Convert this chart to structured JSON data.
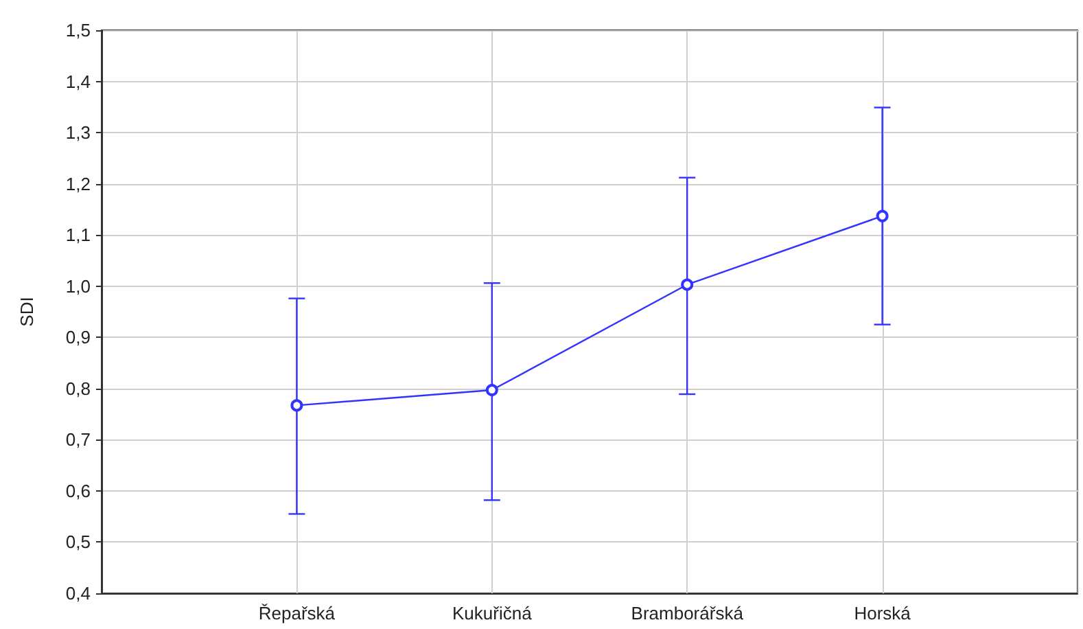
{
  "chart_data": {
    "type": "line",
    "ylabel": "SDI",
    "categories": [
      null,
      "Řepařská",
      "Kukuřičná",
      "Bramborářská",
      "Horská",
      null
    ],
    "series": [
      {
        "color": "#3333ff",
        "values": [
          null,
          0.767,
          0.797,
          1.003,
          1.137,
          null
        ],
        "errors": [
          null,
          [
            0.555,
            0.976
          ],
          [
            0.582,
            1.006
          ],
          [
            0.789,
            1.212
          ],
          [
            0.925,
            1.349
          ],
          null
        ]
      }
    ],
    "ylim": [
      0.4,
      1.5
    ],
    "yticks": [
      {
        "value": 0.4,
        "label": "0,4"
      },
      {
        "value": 0.5,
        "label": "0,5"
      },
      {
        "value": 0.6,
        "label": "0,6"
      },
      {
        "value": 0.7,
        "label": "0,7"
      },
      {
        "value": 0.8,
        "label": "0,8"
      },
      {
        "value": 0.9,
        "label": "0,9"
      },
      {
        "value": 1.0,
        "label": "1,0"
      },
      {
        "value": 1.1,
        "label": "1,1"
      },
      {
        "value": 1.2,
        "label": "1,2"
      },
      {
        "value": 1.3,
        "label": "1,3"
      },
      {
        "value": 1.4,
        "label": "1,4"
      },
      {
        "value": 1.5,
        "label": "1,5"
      }
    ],
    "grid": true,
    "marker": "circle",
    "line_style": "solid"
  }
}
